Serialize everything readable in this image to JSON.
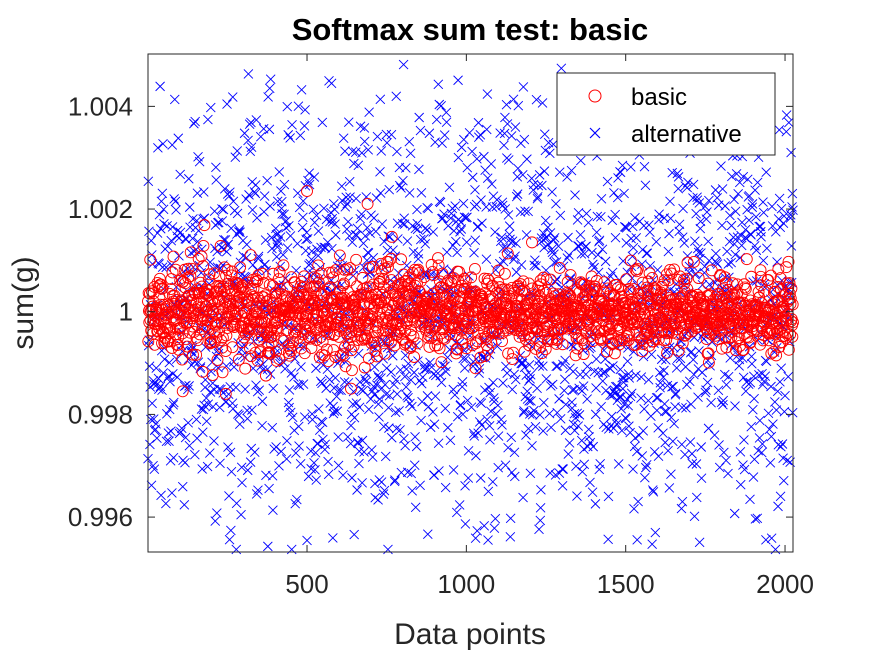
{
  "chart_data": {
    "type": "scatter",
    "title": "Softmax sum test: basic",
    "xlabel": "Data points",
    "ylabel": "sum(g)",
    "xlim": [
      1,
      2025
    ],
    "ylim": [
      0.99532,
      1.00502
    ],
    "x_ticks": [
      500,
      1000,
      1500,
      2000
    ],
    "x_tick_labels": [
      "500",
      "1000",
      "1500",
      "2000"
    ],
    "y_ticks": [
      0.996,
      0.998,
      1.0,
      1.002,
      1.004
    ],
    "y_tick_labels": [
      "0.996",
      "0.998",
      "1",
      "1.002",
      "1.004"
    ],
    "grid": false,
    "legend_position": "top-right",
    "series": [
      {
        "name": "basic",
        "marker": "o",
        "color": "#ff0000",
        "n_points": 2025,
        "distribution": {
          "center": 1.0,
          "spread_std": 0.00042,
          "outliers": [
            [
              110,
              0.99845
            ],
            [
              245,
              0.9984
            ],
            [
              500,
              1.00235
            ],
            [
              690,
              1.0021
            ]
          ]
        }
      },
      {
        "name": "alternative",
        "marker": "x",
        "color": "#0000ff",
        "n_points": 2025,
        "distribution": {
          "center": 1.0,
          "spread_half_width": 0.0049
        }
      }
    ]
  }
}
